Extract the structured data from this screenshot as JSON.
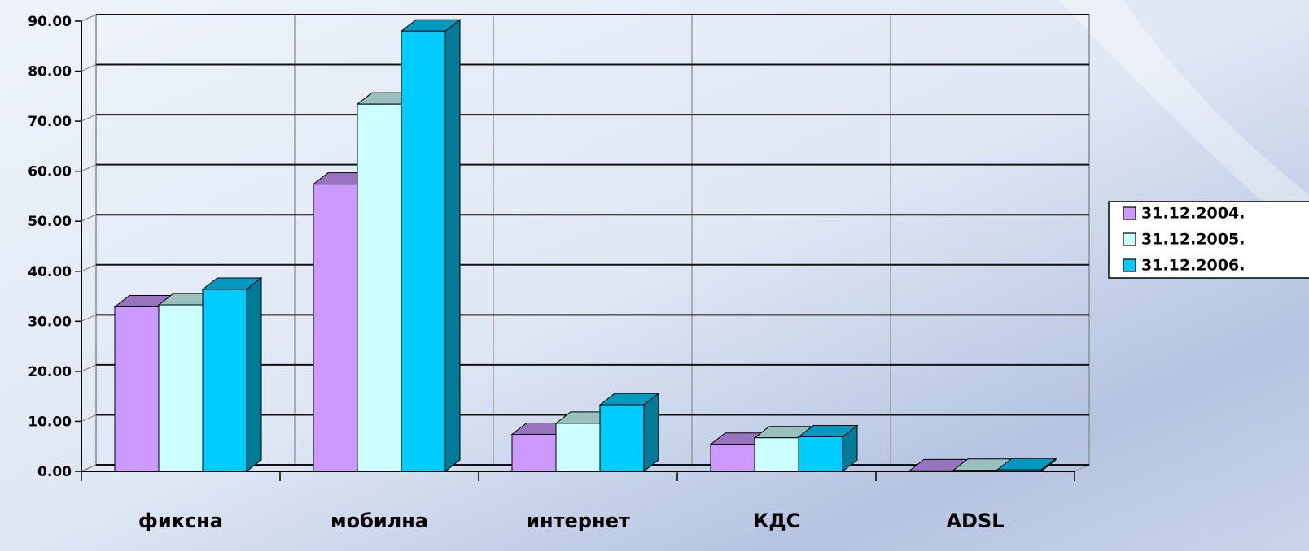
{
  "chart_data": {
    "type": "bar3d",
    "categories": [
      "фиксна",
      "мобилна",
      "интернет",
      "КДС",
      "ADSL"
    ],
    "series": [
      {
        "name": "31.12.2004.",
        "color": "#cc99ff",
        "values": [
          32.9,
          57.4,
          7.4,
          5.4,
          0.1
        ]
      },
      {
        "name": "31.12.2005.",
        "color": "#ccffff",
        "values": [
          33.3,
          73.4,
          9.6,
          6.7,
          0.2
        ]
      },
      {
        "name": "31.12.2006.",
        "color": "#00ccff",
        "values": [
          36.4,
          88.0,
          13.3,
          6.9,
          0.3
        ]
      }
    ],
    "ylim": [
      0,
      90
    ],
    "yticks": [
      {
        "value": 0,
        "label": "0.00"
      },
      {
        "value": 10,
        "label": "10.00"
      },
      {
        "value": 20,
        "label": "20.00"
      },
      {
        "value": 30,
        "label": "30.00"
      },
      {
        "value": 40,
        "label": "40.00"
      },
      {
        "value": 50,
        "label": "50.00"
      },
      {
        "value": 60,
        "label": "60.00"
      },
      {
        "value": 70,
        "label": "70.00"
      },
      {
        "value": 80,
        "label": "80.00"
      },
      {
        "value": 90,
        "label": "90.00"
      }
    ],
    "grid": true,
    "legend": "right"
  }
}
